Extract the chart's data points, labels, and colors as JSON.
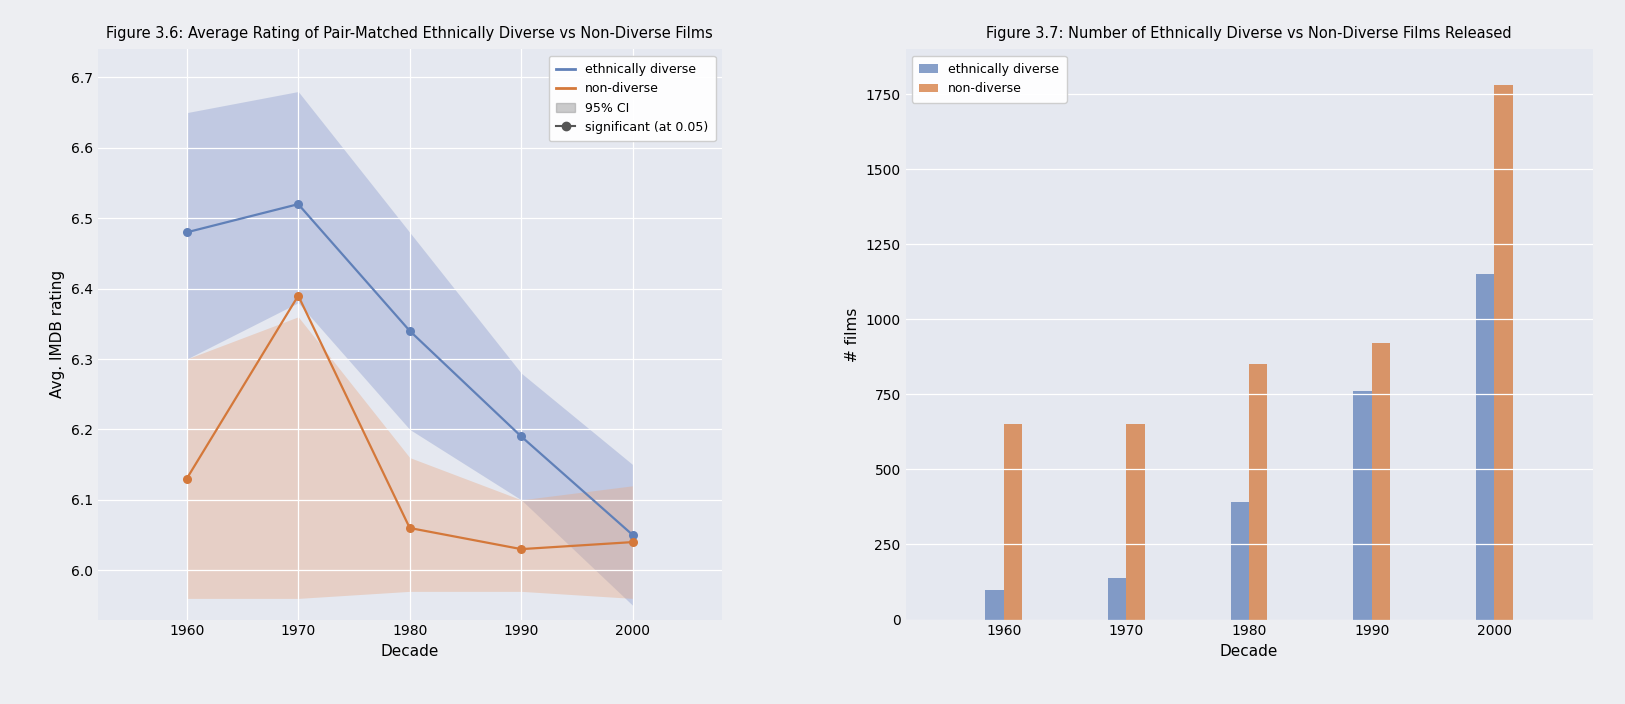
{
  "fig1_title": "Figure 3.6: Average Rating of Pair-Matched Ethnically Diverse vs Non-Diverse Films",
  "fig2_title": "Figure 3.7: Number of Ethnically Diverse vs Non-Diverse Films Released",
  "decades": [
    1960,
    1970,
    1980,
    1990,
    2000
  ],
  "diverse_mean": [
    6.48,
    6.52,
    6.34,
    6.19,
    6.05
  ],
  "diverse_ci_low": [
    6.3,
    6.38,
    6.2,
    6.1,
    5.95
  ],
  "diverse_ci_high": [
    6.65,
    6.68,
    6.48,
    6.28,
    6.15
  ],
  "nondiv_mean": [
    6.13,
    6.39,
    6.06,
    6.03,
    6.04
  ],
  "nondiv_ci_low": [
    5.96,
    5.96,
    5.97,
    5.97,
    5.96
  ],
  "nondiv_ci_high": [
    6.3,
    6.36,
    6.16,
    6.1,
    6.12
  ],
  "diverse_color": "#6080B8",
  "nondiv_color": "#D4783A",
  "diverse_ci_color": "#8899CC",
  "nondiv_ci_color": "#E8A882",
  "bg_color": "#E5E8F0",
  "fig_bg_color": "#EDEEF2",
  "bar_diverse": [
    100,
    140,
    390,
    760,
    1150
  ],
  "bar_nondiv": [
    650,
    650,
    850,
    920,
    1780
  ],
  "ylabel_left": "Avg. IMDB rating",
  "ylabel_right": "# films",
  "xlabel": "Decade",
  "ylim_left": [
    5.93,
    6.74
  ],
  "ylim_right": [
    0,
    1900
  ],
  "yticks_left": [
    6.0,
    6.1,
    6.2,
    6.3,
    6.4,
    6.5,
    6.6,
    6.7
  ],
  "yticks_right": [
    0,
    250,
    500,
    750,
    1000,
    1250,
    1500,
    1750
  ],
  "bar_width": 1.5
}
